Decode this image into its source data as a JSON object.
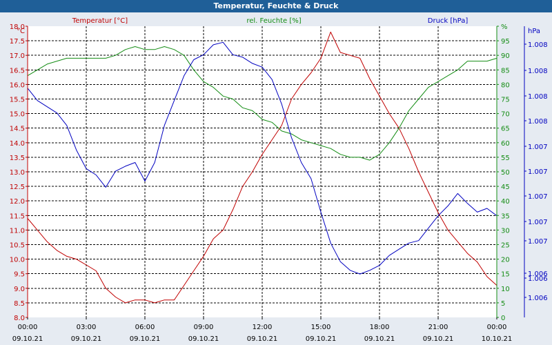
{
  "window": {
    "title": "Temperatur, Feuchte & Druck"
  },
  "colors": {
    "temperature": "#c00000",
    "humidity": "#138c13",
    "pressure": "#0000c0",
    "grid": "#000000",
    "plot_bg": "#ffffff"
  },
  "chart_data": {
    "type": "line",
    "title": "Temperatur, Feuchte & Druck",
    "x_ticks": [
      {
        "time": "00:00",
        "date": "09.10.21"
      },
      {
        "time": "03:00",
        "date": "09.10.21"
      },
      {
        "time": "06:00",
        "date": "09.10.21"
      },
      {
        "time": "09:00",
        "date": "09.10.21"
      },
      {
        "time": "12:00",
        "date": "09.10.21"
      },
      {
        "time": "15:00",
        "date": "09.10.21"
      },
      {
        "time": "18:00",
        "date": "09.10.21"
      },
      {
        "time": "21:00",
        "date": "09.10.21"
      },
      {
        "time": "00:00",
        "date": "10.10.21"
      }
    ],
    "x_unit": "hours",
    "xlim": [
      0,
      24
    ],
    "axes": {
      "left": {
        "unit": "°C",
        "ylim": [
          8.0,
          18.0
        ],
        "ticks": [
          "8.0",
          "8.5",
          "9.0",
          "9.5",
          "10.0",
          "10.5",
          "11.0",
          "11.5",
          "12.0",
          "12.5",
          "13.0",
          "13.5",
          "14.0",
          "14.5",
          "15.0",
          "15.5",
          "16.0",
          "16.5",
          "17.0",
          "17.5",
          "18.0"
        ]
      },
      "middle": {
        "unit": "%",
        "ylim": [
          0,
          100
        ],
        "ticks": [
          "0",
          "5",
          "10",
          "15",
          "20",
          "25",
          "30",
          "35",
          "40",
          "45",
          "50",
          "55",
          "60",
          "65",
          "70",
          "75",
          "80",
          "85",
          "90",
          "95",
          "%"
        ]
      },
      "right": {
        "unit": "hPa",
        "ticks": [
          "1.006",
          "1.006",
          "1.006",
          "1.007",
          "1.007",
          "1.007",
          "1.007",
          "1.007",
          "1.008",
          "1.008",
          "1.008",
          "1.008"
        ]
      }
    },
    "series": [
      {
        "name": "Temperatur [°C]",
        "axis": "left",
        "x": [
          0,
          0.5,
          1,
          1.5,
          2,
          2.5,
          3,
          3.5,
          4,
          4.5,
          5,
          5.5,
          6,
          6.5,
          7,
          7.5,
          8,
          8.5,
          9,
          9.5,
          10,
          10.5,
          11,
          11.5,
          12,
          12.5,
          13,
          13.5,
          14,
          14.5,
          15,
          15.5,
          16,
          16.5,
          17,
          17.5,
          18,
          18.5,
          19,
          19.5,
          20,
          20.5,
          21,
          21.5,
          22,
          22.5,
          23,
          23.5,
          24
        ],
        "values": [
          11.4,
          11.0,
          10.6,
          10.3,
          10.1,
          10.0,
          9.8,
          9.6,
          9.0,
          8.7,
          8.5,
          8.6,
          8.6,
          8.5,
          8.6,
          8.6,
          9.1,
          9.6,
          10.1,
          10.7,
          11.0,
          11.7,
          12.5,
          13.0,
          13.6,
          14.1,
          14.6,
          15.5,
          16.0,
          16.4,
          16.9,
          17.8,
          17.1,
          17.0,
          16.9,
          16.2,
          15.6,
          15.0,
          14.5,
          13.8,
          13.0,
          12.3,
          11.6,
          11.0,
          10.6,
          10.2,
          9.9,
          9.4,
          9.1
        ]
      },
      {
        "name": "rel. Feuchte [%]",
        "axis": "middle",
        "x": [
          0,
          0.5,
          1,
          1.5,
          2,
          2.5,
          3,
          3.5,
          4,
          4.5,
          5,
          5.5,
          6,
          6.5,
          7,
          7.5,
          8,
          8.5,
          9,
          9.5,
          10,
          10.5,
          11,
          11.5,
          12,
          12.5,
          13,
          13.5,
          14,
          14.5,
          15,
          15.5,
          16,
          16.5,
          17,
          17.5,
          18,
          18.5,
          19,
          19.5,
          20,
          20.5,
          21,
          21.5,
          22,
          22.5,
          23,
          23.5,
          24
        ],
        "values": [
          83,
          85,
          87,
          88,
          89,
          89,
          89,
          89,
          89,
          90,
          92,
          93,
          92,
          92,
          93,
          92,
          90,
          85,
          81,
          79,
          76,
          75,
          72,
          71,
          68,
          67,
          64,
          63,
          61,
          60,
          59,
          58,
          56,
          55,
          55,
          54,
          56,
          60,
          65,
          71,
          75,
          79,
          81,
          83,
          85,
          88,
          88,
          88,
          89
        ]
      },
      {
        "name": "Druck [hPa]",
        "axis": "right",
        "x": [
          0,
          0.5,
          1,
          1.5,
          2,
          2.5,
          3,
          3.5,
          4,
          4.5,
          5,
          5.5,
          6,
          6.5,
          7,
          7.5,
          8,
          8.5,
          9,
          9.5,
          10,
          10.5,
          11,
          11.5,
          12,
          12.5,
          13,
          13.5,
          14,
          14.5,
          15,
          15.5,
          16,
          16.5,
          17,
          17.5,
          18,
          18.5,
          19,
          19.5,
          20,
          20.5,
          21,
          21.5,
          22,
          22.5,
          23,
          23.5,
          24
        ],
        "values": [
          1007.85,
          1007.75,
          1007.7,
          1007.65,
          1007.55,
          1007.35,
          1007.2,
          1007.15,
          1007.05,
          1007.18,
          1007.22,
          1007.25,
          1007.1,
          1007.25,
          1007.55,
          1007.75,
          1007.95,
          1008.08,
          1008.12,
          1008.2,
          1008.22,
          1008.12,
          1008.1,
          1008.05,
          1008.02,
          1007.92,
          1007.72,
          1007.45,
          1007.25,
          1007.12,
          1006.85,
          1006.6,
          1006.45,
          1006.38,
          1006.35,
          1006.38,
          1006.42,
          1006.5,
          1006.55,
          1006.6,
          1006.62,
          1006.72,
          1006.82,
          1006.9,
          1007.0,
          1006.92,
          1006.85,
          1006.88,
          1006.82
        ]
      }
    ],
    "grid": true,
    "legend": "top"
  }
}
